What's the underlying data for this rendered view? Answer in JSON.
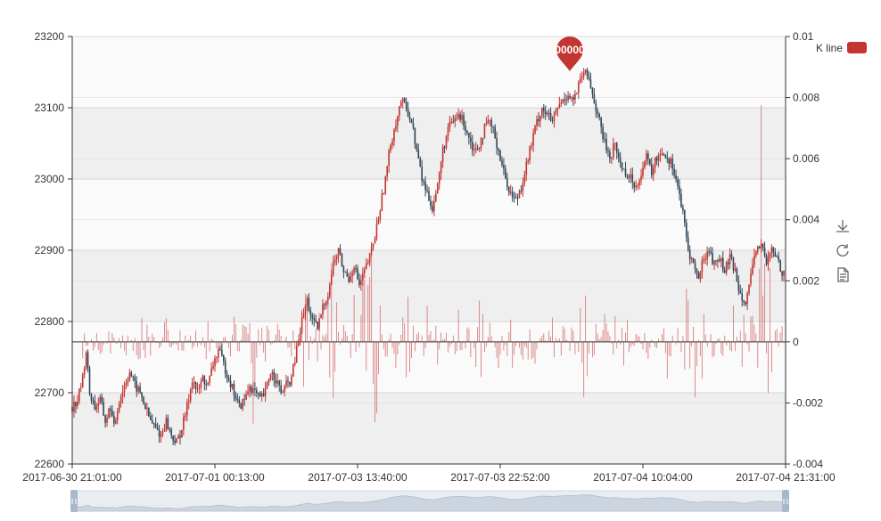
{
  "chart_data": {
    "type": "candlestick",
    "title": "",
    "legend": {
      "label": "K line",
      "color": "#c23531",
      "placement": "top-right"
    },
    "x_axis": {
      "type": "category",
      "tick_labels": [
        "2017-06-30 21:01:00",
        "2017-07-01 00:13:00",
        "2017-07-03 13:40:00",
        "2017-07-03 22:52:00",
        "2017-07-04 10:04:00",
        "2017-07-04 21:31:00"
      ]
    },
    "y_axis_left": {
      "ylim": [
        22600,
        23200
      ],
      "ticks": [
        "23200",
        "23100",
        "23000",
        "22900",
        "22800",
        "22700",
        "22600"
      ]
    },
    "y_axis_right": {
      "ylim": [
        -0.004,
        0.01
      ],
      "ticks": [
        "0.01",
        "0.008",
        "0.006",
        "0.004",
        "0.002",
        "0",
        "-0.002",
        "-0.004"
      ]
    },
    "grid": true,
    "markpoint": {
      "label": "00000",
      "color": "#c23531"
    },
    "price_series": {
      "name": "K line",
      "points": [
        [
          0,
          22680
        ],
        [
          3,
          22690
        ],
        [
          6,
          22720
        ],
        [
          8,
          22760
        ],
        [
          10,
          22700
        ],
        [
          13,
          22680
        ],
        [
          16,
          22690
        ],
        [
          19,
          22660
        ],
        [
          22,
          22680
        ],
        [
          24,
          22650
        ],
        [
          27,
          22690
        ],
        [
          30,
          22710
        ],
        [
          33,
          22730
        ],
        [
          36,
          22710
        ],
        [
          39,
          22700
        ],
        [
          42,
          22680
        ],
        [
          45,
          22660
        ],
        [
          48,
          22650
        ],
        [
          51,
          22640
        ],
        [
          54,
          22660
        ],
        [
          57,
          22640
        ],
        [
          60,
          22630
        ],
        [
          63,
          22650
        ],
        [
          66,
          22680
        ],
        [
          69,
          22720
        ],
        [
          72,
          22700
        ],
        [
          75,
          22720
        ],
        [
          78,
          22710
        ],
        [
          81,
          22740
        ],
        [
          84,
          22760
        ],
        [
          87,
          22740
        ],
        [
          90,
          22720
        ],
        [
          93,
          22700
        ],
        [
          96,
          22680
        ],
        [
          99,
          22690
        ],
        [
          102,
          22710
        ],
        [
          105,
          22700
        ],
        [
          108,
          22690
        ],
        [
          111,
          22700
        ],
        [
          114,
          22730
        ],
        [
          117,
          22720
        ],
        [
          120,
          22700
        ],
        [
          123,
          22710
        ],
        [
          126,
          22720
        ],
        [
          129,
          22760
        ],
        [
          132,
          22800
        ],
        [
          135,
          22830
        ],
        [
          138,
          22800
        ],
        [
          141,
          22790
        ],
        [
          144,
          22820
        ],
        [
          147,
          22840
        ],
        [
          150,
          22880
        ],
        [
          153,
          22900
        ],
        [
          156,
          22870
        ],
        [
          159,
          22860
        ],
        [
          162,
          22880
        ],
        [
          165,
          22850
        ],
        [
          168,
          22870
        ],
        [
          171,
          22890
        ],
        [
          174,
          22920
        ],
        [
          177,
          22960
        ],
        [
          180,
          23000
        ],
        [
          183,
          23050
        ],
        [
          186,
          23080
        ],
        [
          189,
          23110
        ],
        [
          192,
          23100
        ],
        [
          195,
          23080
        ],
        [
          198,
          23040
        ],
        [
          201,
          23000
        ],
        [
          204,
          22980
        ],
        [
          207,
          22960
        ],
        [
          210,
          22990
        ],
        [
          213,
          23040
        ],
        [
          216,
          23070
        ],
        [
          219,
          23080
        ],
        [
          222,
          23090
        ],
        [
          225,
          23080
        ],
        [
          228,
          23060
        ],
        [
          231,
          23040
        ],
        [
          234,
          23050
        ],
        [
          237,
          23070
        ],
        [
          240,
          23080
        ],
        [
          243,
          23060
        ],
        [
          246,
          23030
        ],
        [
          249,
          23000
        ],
        [
          252,
          22980
        ],
        [
          255,
          22970
        ],
        [
          258,
          22990
        ],
        [
          261,
          23020
        ],
        [
          264,
          23050
        ],
        [
          267,
          23080
        ],
        [
          270,
          23100
        ],
        [
          273,
          23090
        ],
        [
          276,
          23080
        ],
        [
          279,
          23100
        ],
        [
          282,
          23110
        ],
        [
          285,
          23120
        ],
        [
          288,
          23110
        ],
        [
          291,
          23130
        ],
        [
          294,
          23150
        ],
        [
          297,
          23140
        ],
        [
          300,
          23110
        ],
        [
          303,
          23080
        ],
        [
          306,
          23050
        ],
        [
          309,
          23030
        ],
        [
          312,
          23050
        ],
        [
          315,
          23020
        ],
        [
          318,
          23010
        ],
        [
          321,
          23000
        ],
        [
          324,
          22990
        ],
        [
          327,
          23010
        ],
        [
          330,
          23030
        ],
        [
          333,
          23010
        ],
        [
          336,
          23030
        ],
        [
          339,
          23040
        ],
        [
          342,
          23030
        ],
        [
          345,
          23020
        ],
        [
          348,
          22990
        ],
        [
          351,
          22950
        ],
        [
          354,
          22900
        ],
        [
          357,
          22880
        ],
        [
          360,
          22860
        ],
        [
          363,
          22890
        ],
        [
          366,
          22900
        ],
        [
          369,
          22880
        ],
        [
          372,
          22890
        ],
        [
          375,
          22870
        ],
        [
          378,
          22890
        ],
        [
          381,
          22870
        ],
        [
          384,
          22840
        ],
        [
          387,
          22830
        ],
        [
          390,
          22860
        ],
        [
          393,
          22900
        ],
        [
          396,
          22910
        ],
        [
          399,
          22880
        ],
        [
          402,
          22900
        ],
        [
          405,
          22890
        ],
        [
          408,
          22870
        ],
        [
          410,
          22880
        ]
      ]
    },
    "volume_series": {
      "name": "",
      "points": [
        [
          6,
          0.0008
        ],
        [
          14,
          -0.0008
        ],
        [
          22,
          0.0005
        ],
        [
          30,
          -0.0006
        ],
        [
          38,
          0.0009
        ],
        [
          46,
          0.0004
        ],
        [
          54,
          -0.0009
        ],
        [
          62,
          0.0006
        ],
        [
          70,
          -0.0005
        ],
        [
          78,
          0.0007
        ],
        [
          86,
          -0.0008
        ],
        [
          94,
          0.0012
        ],
        [
          100,
          -0.0014
        ],
        [
          104,
          0.003
        ],
        [
          110,
          -0.0012
        ],
        [
          118,
          0.0006
        ],
        [
          126,
          -0.0009
        ],
        [
          134,
          0.0018
        ],
        [
          142,
          -0.0015
        ],
        [
          150,
          0.0032
        ],
        [
          156,
          -0.0012
        ],
        [
          162,
          0.0014
        ],
        [
          168,
          -0.0025
        ],
        [
          174,
          -0.0032
        ],
        [
          180,
          0.0009
        ],
        [
          186,
          -0.0015
        ],
        [
          192,
          0.0022
        ],
        [
          198,
          0.0006
        ],
        [
          204,
          -0.0011
        ],
        [
          210,
          0.0009
        ],
        [
          216,
          -0.0007
        ],
        [
          222,
          0.0011
        ],
        [
          228,
          -0.0009
        ],
        [
          234,
          0.0017
        ],
        [
          240,
          -0.0006
        ],
        [
          246,
          0.0012
        ],
        [
          252,
          -0.0016
        ],
        [
          258,
          0.0009
        ],
        [
          264,
          -0.0013
        ],
        [
          270,
          0.0006
        ],
        [
          276,
          -0.0008
        ],
        [
          282,
          0.0007
        ],
        [
          288,
          -0.0009
        ],
        [
          294,
          0.0021
        ],
        [
          300,
          -0.0011
        ],
        [
          306,
          0.0013
        ],
        [
          312,
          -0.0009
        ],
        [
          318,
          0.0011
        ],
        [
          324,
          -0.0007
        ],
        [
          330,
          0.0009
        ],
        [
          336,
          -0.0006
        ],
        [
          342,
          0.0011
        ],
        [
          348,
          -0.0005
        ],
        [
          354,
          0.0021
        ],
        [
          358,
          -0.0018
        ],
        [
          362,
          0.0014
        ],
        [
          368,
          -0.0007
        ],
        [
          374,
          0.0009
        ],
        [
          380,
          -0.0011
        ],
        [
          386,
          0.0012
        ],
        [
          392,
          -0.0018
        ],
        [
          396,
          0.0085
        ],
        [
          400,
          -0.0035
        ],
        [
          404,
          0.0012
        ],
        [
          408,
          -0.0009
        ],
        [
          410,
          0.0008
        ]
      ]
    }
  },
  "toolbox": {
    "save_icon": "download-icon",
    "restore_icon": "refresh-icon",
    "dataview_icon": "document-icon"
  },
  "datazoom": {
    "start_percent": 0,
    "end_percent": 100
  }
}
